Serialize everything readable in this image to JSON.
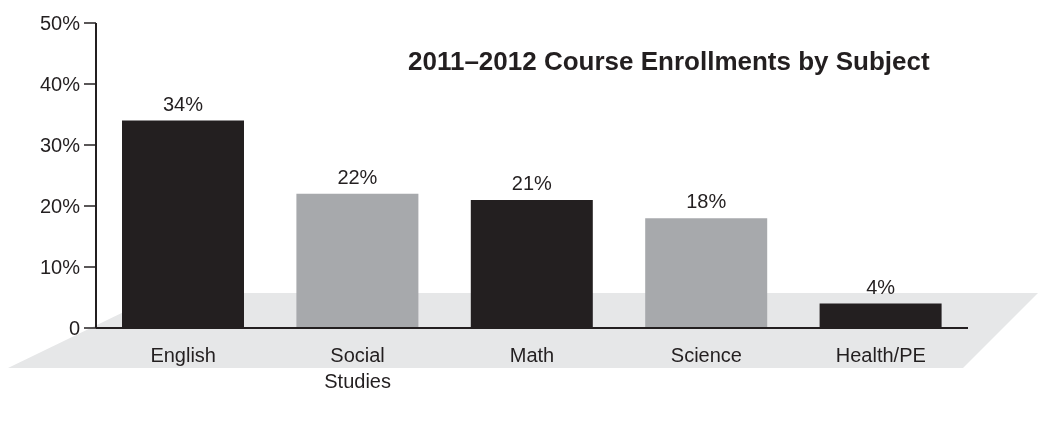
{
  "chart_data": {
    "type": "bar",
    "title": "2011–2012 Course Enrollments by Subject",
    "categories": [
      "English",
      "Social Studies",
      "Math",
      "Science",
      "Health/PE"
    ],
    "values": [
      34,
      22,
      21,
      18,
      4
    ],
    "colors": [
      "#231f20",
      "#a7a9ac",
      "#231f20",
      "#a7a9ac",
      "#231f20"
    ],
    "value_labels": [
      "34%",
      "22%",
      "21%",
      "18%",
      "4%"
    ],
    "ylim": [
      0,
      50
    ],
    "yticks": [
      {
        "value": 0,
        "label": "0"
      },
      {
        "value": 10,
        "label": "10%"
      },
      {
        "value": 20,
        "label": "20%"
      },
      {
        "value": 30,
        "label": "30%"
      },
      {
        "value": 40,
        "label": "40%"
      },
      {
        "value": 50,
        "label": "50%"
      }
    ],
    "grid": false,
    "legend": false
  }
}
